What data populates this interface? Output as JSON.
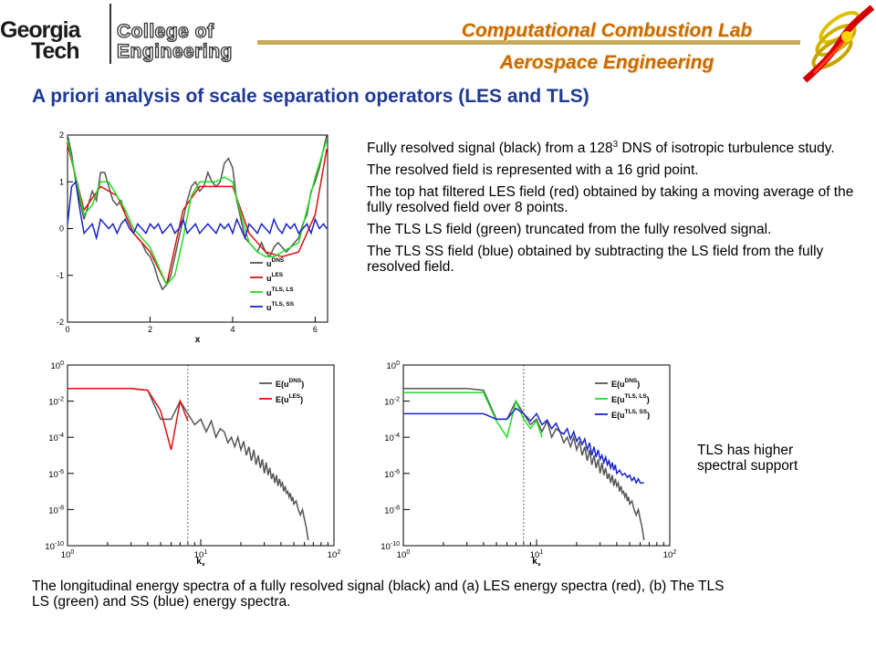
{
  "header": {
    "logo_left": [
      "Georgia",
      "Tech"
    ],
    "logo_right": [
      "College of",
      "Engineering"
    ],
    "lab_name": "Computational Combustion Lab",
    "department": "Aerospace Engineering"
  },
  "title": "A priori analysis of scale separation operators (LES and TLS)",
  "bullets": [
    {
      "pre": "Fully resolved signal (black) from a 128",
      "sup": "3",
      "post": " DNS of isotropic turbulence study."
    },
    {
      "pre": "The resolved field is represented with a 16 grid point.",
      "sup": "",
      "post": ""
    },
    {
      "pre": "The top hat filtered LES field (red) obtained by taking a moving average of the fully resolved field over 8 points.",
      "sup": "",
      "post": ""
    },
    {
      "pre": "The TLS LS field (green) truncated from the fully resolved signal.",
      "sup": "",
      "post": ""
    },
    {
      "pre": "The TLS SS field (blue) obtained by subtracting the LS field from the fully resolved field.",
      "sup": "",
      "post": ""
    }
  ],
  "side_note": "TLS has higher spectral support",
  "caption": "The longitudinal energy spectra of a fully resolved signal (black) and (a) LES energy spectra (red), (b) The TLS LS (green) and SS (blue) energy spectra.",
  "colors": {
    "dns": "#555555",
    "les": "#e01010",
    "tls_ls": "#22dd22",
    "tls_ss": "#1a24c8",
    "title": "#1f3a93",
    "accent": "#c96a00"
  },
  "chart_data": [
    {
      "type": "line",
      "xlabel": "x",
      "ylabel": "",
      "xlim": [
        0,
        6.3
      ],
      "ylim": [
        -2,
        2
      ],
      "xticks": [
        "0",
        "2",
        "4",
        "6"
      ],
      "yticks": [
        "-2",
        "-1",
        "0",
        "1",
        "2"
      ],
      "legend": "bottom-right",
      "series": [
        {
          "name": "u",
          "sup": "DNS",
          "color": "#555555",
          "x": [
            0,
            0.1,
            0.2,
            0.3,
            0.4,
            0.5,
            0.6,
            0.7,
            0.8,
            0.9,
            1.0,
            1.1,
            1.2,
            1.3,
            1.4,
            1.5,
            1.6,
            1.7,
            1.8,
            1.9,
            2.0,
            2.1,
            2.2,
            2.3,
            2.4,
            2.5,
            2.6,
            2.7,
            2.8,
            2.9,
            3.0,
            3.1,
            3.2,
            3.3,
            3.4,
            3.5,
            3.6,
            3.7,
            3.8,
            3.9,
            4.0,
            4.1,
            4.2,
            4.3,
            4.4,
            4.5,
            4.6,
            4.7,
            4.8,
            4.9,
            5.0,
            5.1,
            5.2,
            5.3,
            5.4,
            5.5,
            5.6,
            5.7,
            5.8,
            5.9,
            6.0,
            6.1,
            6.2,
            6.28
          ],
          "y": [
            2.0,
            1.6,
            1.0,
            0.6,
            0.2,
            0.5,
            0.8,
            0.6,
            1.2,
            1.2,
            0.9,
            0.6,
            0.5,
            0.6,
            0.3,
            0.1,
            -0.1,
            -0.2,
            -0.3,
            -0.5,
            -0.6,
            -0.8,
            -1.1,
            -1.3,
            -1.2,
            -1.0,
            -0.6,
            -0.2,
            0.2,
            0.6,
            0.9,
            1.0,
            0.8,
            0.9,
            1.2,
            1.0,
            0.9,
            1.0,
            1.4,
            1.5,
            1.3,
            0.6,
            0.2,
            -0.2,
            -0.3,
            -0.4,
            -0.5,
            -0.3,
            -0.5,
            -0.6,
            -0.4,
            -0.3,
            -0.4,
            -0.5,
            -0.4,
            -0.3,
            -0.2,
            0.1,
            0.3,
            0.8,
            1.0,
            1.3,
            1.7,
            2.0
          ]
        },
        {
          "name": "u",
          "sup": "LES",
          "color": "#e01010",
          "x": [
            0,
            0.4,
            0.8,
            1.2,
            1.6,
            2.0,
            2.4,
            2.8,
            3.2,
            3.6,
            4.0,
            4.4,
            4.8,
            5.2,
            5.6,
            6.0,
            6.28
          ],
          "y": [
            1.8,
            0.4,
            0.9,
            0.7,
            -0.1,
            -0.5,
            -1.2,
            0.4,
            0.9,
            0.9,
            0.9,
            -0.1,
            -0.5,
            -0.6,
            -0.5,
            0.3,
            1.7
          ]
        },
        {
          "name": "u",
          "sup": "TLS, LS",
          "color": "#22dd22",
          "x": [
            0,
            0.2,
            0.4,
            0.6,
            0.8,
            1.0,
            1.2,
            1.4,
            1.6,
            1.8,
            2.0,
            2.2,
            2.4,
            2.6,
            2.8,
            3.0,
            3.2,
            3.4,
            3.6,
            3.8,
            4.0,
            4.2,
            4.4,
            4.6,
            4.8,
            5.0,
            5.2,
            5.4,
            5.6,
            5.8,
            6.0,
            6.28
          ],
          "y": [
            1.9,
            1.1,
            0.3,
            0.5,
            1.0,
            1.0,
            0.7,
            0.4,
            0.0,
            -0.2,
            -0.4,
            -0.8,
            -1.2,
            -1.0,
            -0.2,
            0.7,
            1.0,
            1.0,
            1.0,
            1.1,
            1.0,
            0.3,
            -0.3,
            -0.5,
            -0.6,
            -0.6,
            -0.5,
            -0.4,
            -0.3,
            0.4,
            1.1,
            1.9
          ]
        },
        {
          "name": "u",
          "sup": "TLS, SS",
          "color": "#1a24c8",
          "x": [
            0,
            0.1,
            0.2,
            0.3,
            0.4,
            0.5,
            0.6,
            0.7,
            0.8,
            0.9,
            1.0,
            1.1,
            1.2,
            1.3,
            1.4,
            1.5,
            1.6,
            1.7,
            1.8,
            1.9,
            2.0,
            2.1,
            2.2,
            2.3,
            2.4,
            2.5,
            2.6,
            2.7,
            2.8,
            2.9,
            3.0,
            3.1,
            3.2,
            3.3,
            3.4,
            3.5,
            3.6,
            3.7,
            3.8,
            3.9,
            4.0,
            4.1,
            4.2,
            4.3,
            4.4,
            4.5,
            4.6,
            4.7,
            4.8,
            4.9,
            5.0,
            5.1,
            5.2,
            5.3,
            5.4,
            5.5,
            5.6,
            5.7,
            5.8,
            5.9,
            6.0,
            6.1,
            6.2,
            6.28
          ],
          "y": [
            0.1,
            0.9,
            1.0,
            0.4,
            -0.1,
            0.0,
            0.1,
            -0.2,
            0.2,
            0.1,
            0.0,
            0.1,
            -0.1,
            0.1,
            0.2,
            0.0,
            -0.1,
            0.1,
            0.0,
            -0.1,
            0.1,
            0.0,
            0.1,
            -0.1,
            0.0,
            0.1,
            -0.1,
            0.0,
            0.2,
            -0.1,
            0.0,
            0.1,
            -0.1,
            0.0,
            0.1,
            0.0,
            -0.1,
            0.1,
            0.0,
            0.1,
            -0.1,
            0.2,
            0.0,
            -0.2,
            0.1,
            0.0,
            -0.1,
            0.1,
            0.0,
            -0.1,
            0.2,
            0.0,
            -0.1,
            0.1,
            0.0,
            0.1,
            -0.1,
            0.0,
            0.1,
            -0.1,
            0.2,
            0.0,
            0.1,
            0.0
          ]
        }
      ]
    },
    {
      "type": "line",
      "panel": "(a)",
      "xlabel": "k",
      "xlabel_sub": "x",
      "log_x": true,
      "log_y": true,
      "xlim": [
        1,
        100
      ],
      "ylim": [
        1e-10,
        1
      ],
      "xticks": [
        {
          "b": "10",
          "e": "0"
        },
        {
          "b": "10",
          "e": "1"
        },
        {
          "b": "10",
          "e": "2"
        }
      ],
      "yticks": [
        {
          "b": "10",
          "e": "0"
        },
        {
          "b": "10",
          "e": "-2"
        },
        {
          "b": "10",
          "e": "-4"
        },
        {
          "b": "10",
          "e": "-6"
        },
        {
          "b": "10",
          "e": "-8"
        },
        {
          "b": "10",
          "e": "-10"
        }
      ],
      "cutoff_line": 8,
      "legend": "top-right",
      "series": [
        {
          "name": "E(u",
          "sup": "DNS",
          "close": ")",
          "color": "#555555",
          "x": [
            1,
            2,
            3,
            4,
            5,
            6,
            7,
            8,
            9,
            10,
            11,
            12,
            13,
            14,
            15,
            16,
            17,
            18,
            19,
            20,
            21,
            22,
            23,
            24,
            25,
            26,
            27,
            28,
            29,
            30,
            31,
            32,
            33,
            34,
            35,
            36,
            37,
            38,
            39,
            40,
            41,
            42,
            43,
            44,
            45,
            46,
            47,
            48,
            49,
            50,
            52,
            54,
            56,
            58,
            60,
            62,
            64
          ],
          "y": [
            0.05,
            0.05,
            0.05,
            0.04,
            0.001,
            0.001,
            0.01,
            0.002,
            0.0005,
            0.001,
            0.0002,
            0.0008,
            0.0001,
            0.0003,
            0.0002,
            5e-05,
            0.0001,
            3e-05,
            0.0001,
            2e-05,
            6e-05,
            1e-05,
            3e-05,
            5e-06,
            2e-05,
            3e-06,
            1e-05,
            2e-06,
            6e-06,
            1e-06,
            4e-06,
            8e-07,
            2e-06,
            5e-07,
            1e-06,
            3e-07,
            8e-07,
            2e-07,
            5e-07,
            2e-07,
            3e-07,
            1e-07,
            2e-07,
            8e-08,
            1e-07,
            5e-08,
            8e-08,
            3e-08,
            5e-08,
            2e-08,
            3e-08,
            1e-08,
            5e-09,
            1e-08,
            3e-09,
            1e-09,
            2e-10
          ]
        },
        {
          "name": "E(u",
          "sup": "LES",
          "close": ")",
          "color": "#e01010",
          "x": [
            1,
            2,
            3,
            4,
            5,
            6,
            7,
            8
          ],
          "y": [
            0.05,
            0.05,
            0.05,
            0.04,
            0.003,
            2e-05,
            0.01,
            0.0008
          ]
        }
      ]
    },
    {
      "type": "line",
      "panel": "(b)",
      "xlabel": "k",
      "xlabel_sub": "x",
      "log_x": true,
      "log_y": true,
      "xlim": [
        1,
        100
      ],
      "ylim": [
        1e-10,
        1
      ],
      "xticks": [
        {
          "b": "10",
          "e": "0"
        },
        {
          "b": "10",
          "e": "1"
        },
        {
          "b": "10",
          "e": "2"
        }
      ],
      "yticks": [
        {
          "b": "10",
          "e": "0"
        },
        {
          "b": "10",
          "e": "-2"
        },
        {
          "b": "10",
          "e": "-4"
        },
        {
          "b": "10",
          "e": "-6"
        },
        {
          "b": "10",
          "e": "-8"
        },
        {
          "b": "10",
          "e": "-10"
        }
      ],
      "cutoff_line": 8,
      "legend": "top-right",
      "series": [
        {
          "name": "E(u",
          "sup": "DNS",
          "close": ")",
          "color": "#555555",
          "x": [
            1,
            2,
            3,
            4,
            5,
            6,
            7,
            8,
            9,
            10,
            11,
            12,
            13,
            14,
            15,
            16,
            17,
            18,
            19,
            20,
            21,
            22,
            23,
            24,
            25,
            26,
            27,
            28,
            29,
            30,
            31,
            32,
            33,
            34,
            35,
            36,
            37,
            38,
            39,
            40,
            41,
            42,
            43,
            44,
            45,
            46,
            47,
            48,
            49,
            50,
            52,
            54,
            56,
            58,
            60,
            62,
            64
          ],
          "y": [
            0.05,
            0.05,
            0.05,
            0.04,
            0.001,
            0.001,
            0.01,
            0.002,
            0.0005,
            0.001,
            0.0002,
            0.0008,
            0.0001,
            0.0003,
            0.0002,
            5e-05,
            0.0001,
            3e-05,
            0.0001,
            2e-05,
            6e-05,
            1e-05,
            3e-05,
            5e-06,
            2e-05,
            3e-06,
            1e-05,
            2e-06,
            6e-06,
            1e-06,
            4e-06,
            8e-07,
            2e-06,
            5e-07,
            1e-06,
            3e-07,
            8e-07,
            2e-07,
            5e-07,
            2e-07,
            3e-07,
            1e-07,
            2e-07,
            8e-08,
            1e-07,
            5e-08,
            8e-08,
            3e-08,
            5e-08,
            2e-08,
            3e-08,
            1e-08,
            5e-09,
            1e-08,
            3e-09,
            1e-09,
            2e-10
          ]
        },
        {
          "name": "E(u",
          "sup": "TLS, LS",
          "close": ")",
          "color": "#22dd22",
          "x": [
            1,
            2,
            3,
            4,
            5,
            6,
            7,
            8,
            9,
            10,
            11
          ],
          "y": [
            0.03,
            0.03,
            0.03,
            0.03,
            0.0008,
            0.0001,
            0.01,
            0.001,
            0.0003,
            0.0008,
            0.0001
          ]
        },
        {
          "name": "E(u",
          "sup": "TLS, SS",
          "close": ")",
          "color": "#1a24c8",
          "x": [
            1,
            2,
            3,
            4,
            5,
            6,
            7,
            8,
            9,
            10,
            11,
            12,
            13,
            14,
            15,
            16,
            17,
            18,
            19,
            20,
            21,
            22,
            23,
            24,
            25,
            26,
            27,
            28,
            29,
            30,
            31,
            32,
            33,
            34,
            35,
            36,
            37,
            38,
            39,
            40,
            42,
            44,
            46,
            48,
            50,
            52,
            54,
            56,
            58,
            60,
            62,
            64
          ],
          "y": [
            0.002,
            0.002,
            0.002,
            0.002,
            0.001,
            0.001,
            0.004,
            0.002,
            0.0008,
            0.002,
            0.0005,
            0.0009,
            0.0003,
            0.0006,
            0.0002,
            0.00015,
            0.0003,
            8e-05,
            0.0002,
            6e-05,
            0.0001,
            4e-05,
            8e-05,
            2e-05,
            5e-05,
            1e-05,
            3e-05,
            8e-06,
            2e-05,
            6e-06,
            1e-05,
            4e-06,
            8e-06,
            3e-06,
            5e-06,
            2e-06,
            4e-06,
            1.5e-06,
            3e-06,
            1e-06,
            1.5e-06,
            8e-07,
            1e-06,
            6e-07,
            8e-07,
            4e-07,
            6e-07,
            3e-07,
            5e-07,
            3e-07,
            3e-07,
            3e-07
          ]
        }
      ]
    }
  ]
}
